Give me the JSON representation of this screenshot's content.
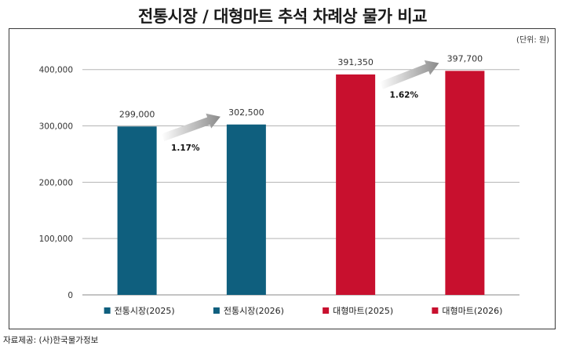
{
  "title": "전통시장 / 대형마트 추석 차례상 물가 비교",
  "unit": "(단위: 원)",
  "source": "자료제공: (사)한국물가정보",
  "colors": {
    "traditional": "#0f5f7e",
    "mart": "#c8102e",
    "arrow": "#9a9a9a"
  },
  "chart_data": {
    "type": "bar",
    "categories": [
      "전통시장(2025)",
      "전통시장(2026)",
      "대형마트(2025)",
      "대형마트(2026)"
    ],
    "values": [
      299000,
      302500,
      391350,
      397700
    ],
    "value_labels": [
      "299,000",
      "302,500",
      "391,350",
      "397,700"
    ],
    "bar_colors": [
      "#0f5f7e",
      "#0f5f7e",
      "#c8102e",
      "#c8102e"
    ],
    "ylim": [
      0,
      440000
    ],
    "yticks": [
      0,
      100000,
      200000,
      300000,
      400000
    ],
    "ytick_labels": [
      "0",
      "100,000",
      "200,000",
      "300,000",
      "400,000"
    ],
    "grid": true,
    "legend_position": "bottom",
    "annotations": [
      {
        "text": "1.17%",
        "from": 0,
        "to": 1
      },
      {
        "text": "1.62%",
        "from": 2,
        "to": 3
      }
    ]
  }
}
